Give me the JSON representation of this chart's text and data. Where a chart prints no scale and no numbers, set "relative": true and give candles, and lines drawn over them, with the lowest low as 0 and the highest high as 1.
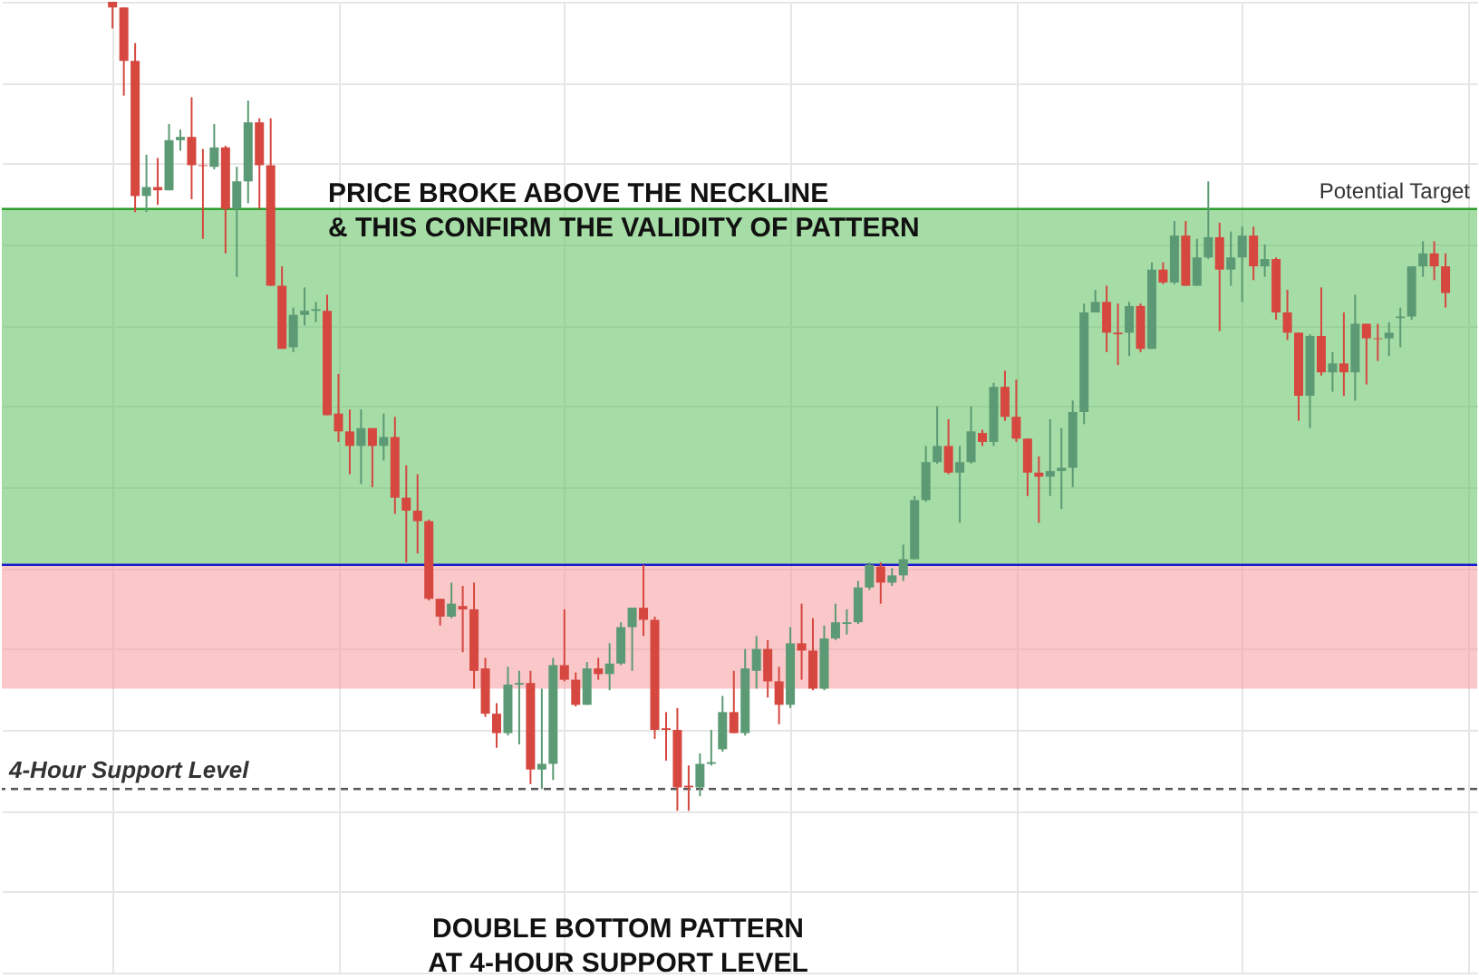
{
  "chart_data": {
    "type": "candlestick",
    "relative": true,
    "tick_labels": false,
    "grid": true,
    "colors": [
      "#d5473f",
      "#d5473f",
      "#d5473f",
      "#5b9a74",
      "#d5473f",
      "#5b9a74",
      "#5b9a74",
      "#d5473f",
      "#d5473f",
      "#5b9a74",
      "#d5473f",
      "#5b9a74",
      "#5b9a74",
      "#d5473f",
      "#d5473f",
      "#d5473f",
      "#5b9a74",
      "#5b9a74",
      "#5b9a74",
      "#d5473f",
      "#d5473f",
      "#d5473f",
      "#5b9a74",
      "#d5473f",
      "#5b9a74",
      "#d5473f",
      "#d5473f",
      "#d5473f",
      "#d5473f",
      "#d5473f",
      "#5b9a74",
      "#d5473f",
      "#d5473f",
      "#d5473f",
      "#d5473f",
      "#5b9a74",
      "#5b9a74",
      "#d5473f",
      "#5b9a74",
      "#5b9a74",
      "#d5473f",
      "#d5473f",
      "#5b9a74",
      "#d5473f",
      "#5b9a74",
      "#5b9a74",
      "#5b9a74",
      "#d5473f",
      "#d5473f",
      "#d5473f",
      "#d5473f",
      "#d5473f",
      "#5b9a74",
      "#5b9a74",
      "#5b9a74",
      "#d5473f",
      "#5b9a74",
      "#5b9a74",
      "#d5473f",
      "#d5473f",
      "#5b9a74",
      "#d5473f",
      "#d5473f",
      "#5b9a74",
      "#5b9a74",
      "#5b9a74",
      "#5b9a74",
      "#5b9a74",
      "#d5473f",
      "#5b9a74",
      "#5b9a74",
      "#5b9a74",
      "#5b9a74",
      "#5b9a74",
      "#d5473f",
      "#5b9a74",
      "#5b9a74",
      "#d5473f",
      "#5b9a74",
      "#d5473f",
      "#d5473f",
      "#d5473f",
      "#d5473f",
      "#5b9a74",
      "#5b9a74",
      "#5b9a74",
      "#5b9a74",
      "#5b9a74",
      "#d5473f",
      "#d5473f",
      "#5b9a74",
      "#d5473f",
      "#5b9a74",
      "#d5473f",
      "#5b9a74",
      "#d5473f",
      "#5b9a74",
      "#5b9a74",
      "#d5473f",
      "#5b9a74",
      "#5b9a74",
      "#d5473f",
      "#5b9a74",
      "#d5473f",
      "#d5473f",
      "#d5473f",
      "#5b9a74",
      "#d5473f",
      "#5b9a74",
      "#d5473f",
      "#5b9a74",
      "#d5473f",
      "#d5473f",
      "#5b9a74",
      "#5b9a74",
      "#5b9a74",
      "#5b9a74",
      "#d5473f",
      "#d5473f"
    ],
    "categories": [
      null,
      null,
      null,
      null,
      null,
      null,
      null,
      null,
      null,
      null,
      null,
      null,
      null,
      null,
      null,
      null,
      null,
      null,
      null,
      null,
      null,
      null,
      null,
      null,
      null,
      null,
      null,
      null,
      null,
      null,
      null,
      null,
      null,
      null,
      null,
      null,
      null,
      null,
      null,
      null,
      null,
      null,
      null,
      null,
      null,
      null,
      null,
      null,
      null,
      null,
      null,
      null,
      null,
      null,
      null,
      null,
      null,
      null,
      null,
      null,
      null,
      null,
      null,
      null,
      null,
      null,
      null,
      null,
      null,
      null,
      null,
      null,
      null,
      null,
      null,
      null,
      null,
      null,
      null,
      null,
      null,
      null,
      null,
      null,
      null,
      null,
      null,
      null,
      null,
      null,
      null,
      null,
      null,
      null,
      null,
      null,
      null,
      null,
      null,
      null,
      null,
      null,
      null,
      null,
      null,
      null,
      null,
      null,
      null,
      null,
      null,
      null,
      null,
      null,
      null,
      null,
      null,
      null,
      null
    ],
    "ohlc": [
      [
        1.0,
        1.0,
        0.967,
        0.993
      ],
      [
        0.993,
        0.993,
        0.884,
        0.927
      ],
      [
        0.927,
        0.949,
        0.74,
        0.76
      ],
      [
        0.76,
        0.811,
        0.74,
        0.771
      ],
      [
        0.771,
        0.807,
        0.749,
        0.767
      ],
      [
        0.767,
        0.849,
        0.767,
        0.829
      ],
      [
        0.829,
        0.842,
        0.816,
        0.833
      ],
      [
        0.833,
        0.882,
        0.756,
        0.798
      ],
      [
        0.798,
        0.818,
        0.707,
        0.797
      ],
      [
        0.796,
        0.849,
        0.793,
        0.82
      ],
      [
        0.82,
        0.822,
        0.689,
        0.744
      ],
      [
        0.744,
        0.796,
        0.66,
        0.778
      ],
      [
        0.778,
        0.878,
        0.751,
        0.851
      ],
      [
        0.851,
        0.856,
        0.744,
        0.798
      ],
      [
        0.798,
        0.856,
        0.649,
        0.649
      ],
      [
        0.649,
        0.673,
        0.571,
        0.571
      ],
      [
        0.573,
        0.622,
        0.567,
        0.613
      ],
      [
        0.613,
        0.647,
        0.6,
        0.618
      ],
      [
        0.618,
        0.629,
        0.604,
        0.62
      ],
      [
        0.618,
        0.638,
        0.489,
        0.489
      ],
      [
        0.491,
        0.54,
        0.456,
        0.469
      ],
      [
        0.469,
        0.496,
        0.416,
        0.451
      ],
      [
        0.451,
        0.496,
        0.404,
        0.473
      ],
      [
        0.473,
        0.473,
        0.4,
        0.451
      ],
      [
        0.451,
        0.491,
        0.433,
        0.462
      ],
      [
        0.462,
        0.487,
        0.367,
        0.387
      ],
      [
        0.387,
        0.427,
        0.307,
        0.371
      ],
      [
        0.371,
        0.416,
        0.318,
        0.358
      ],
      [
        0.358,
        0.36,
        0.26,
        0.262
      ],
      [
        0.262,
        0.262,
        0.229,
        0.24
      ],
      [
        0.24,
        0.282,
        0.238,
        0.256
      ],
      [
        0.253,
        0.278,
        0.196,
        0.249
      ],
      [
        0.249,
        0.282,
        0.151,
        0.173
      ],
      [
        0.176,
        0.189,
        0.116,
        0.12
      ],
      [
        0.12,
        0.133,
        0.078,
        0.096
      ],
      [
        0.096,
        0.178,
        0.093,
        0.156
      ],
      [
        0.156,
        0.173,
        0.082,
        0.158
      ],
      [
        0.158,
        0.173,
        0.033,
        0.051
      ],
      [
        0.051,
        0.151,
        0.027,
        0.058
      ],
      [
        0.058,
        0.189,
        0.038,
        0.18
      ],
      [
        0.18,
        0.249,
        0.16,
        0.162
      ],
      [
        0.162,
        0.171,
        0.129,
        0.131
      ],
      [
        0.131,
        0.184,
        0.131,
        0.176
      ],
      [
        0.176,
        0.189,
        0.162,
        0.169
      ],
      [
        0.169,
        0.207,
        0.149,
        0.182
      ],
      [
        0.182,
        0.233,
        0.18,
        0.227
      ],
      [
        0.227,
        0.251,
        0.173,
        0.251
      ],
      [
        0.251,
        0.304,
        0.216,
        0.236
      ],
      [
        0.236,
        0.24,
        0.089,
        0.1
      ],
      [
        0.102,
        0.122,
        0.062,
        0.1
      ],
      [
        0.1,
        0.127,
        0.0,
        0.029
      ],
      [
        0.031,
        0.056,
        0.0,
        0.029
      ],
      [
        0.029,
        0.071,
        0.018,
        0.058
      ],
      [
        0.058,
        0.1,
        0.056,
        0.06
      ],
      [
        0.076,
        0.142,
        0.073,
        0.122
      ],
      [
        0.122,
        0.173,
        0.096,
        0.096
      ],
      [
        0.096,
        0.2,
        0.093,
        0.176
      ],
      [
        0.173,
        0.216,
        0.151,
        0.2
      ],
      [
        0.2,
        0.211,
        0.14,
        0.16
      ],
      [
        0.16,
        0.178,
        0.107,
        0.131
      ],
      [
        0.131,
        0.227,
        0.127,
        0.207
      ],
      [
        0.207,
        0.256,
        0.162,
        0.198
      ],
      [
        0.198,
        0.238,
        0.149,
        0.151
      ],
      [
        0.151,
        0.229,
        0.149,
        0.213
      ],
      [
        0.213,
        0.256,
        0.211,
        0.233
      ],
      [
        0.231,
        0.249,
        0.218,
        0.233
      ],
      [
        0.233,
        0.284,
        0.231,
        0.276
      ],
      [
        0.276,
        0.307,
        0.273,
        0.304
      ],
      [
        0.302,
        0.307,
        0.256,
        0.282
      ],
      [
        0.282,
        0.3,
        0.278,
        0.291
      ],
      [
        0.291,
        0.329,
        0.284,
        0.311
      ],
      [
        0.311,
        0.389,
        0.311,
        0.384
      ],
      [
        0.384,
        0.451,
        0.382,
        0.431
      ],
      [
        0.431,
        0.5,
        0.429,
        0.451
      ],
      [
        0.451,
        0.484,
        0.416,
        0.418
      ],
      [
        0.418,
        0.451,
        0.356,
        0.431
      ],
      [
        0.431,
        0.5,
        0.429,
        0.469
      ],
      [
        0.467,
        0.471,
        0.451,
        0.456
      ],
      [
        0.456,
        0.529,
        0.451,
        0.524
      ],
      [
        0.524,
        0.544,
        0.482,
        0.487
      ],
      [
        0.487,
        0.533,
        0.456,
        0.46
      ],
      [
        0.46,
        0.46,
        0.389,
        0.418
      ],
      [
        0.418,
        0.438,
        0.356,
        0.413
      ],
      [
        0.413,
        0.484,
        0.389,
        0.42
      ],
      [
        0.42,
        0.473,
        0.373,
        0.424
      ],
      [
        0.424,
        0.507,
        0.4,
        0.493
      ],
      [
        0.493,
        0.627,
        0.478,
        0.616
      ],
      [
        0.616,
        0.644,
        0.616,
        0.629
      ],
      [
        0.629,
        0.649,
        0.567,
        0.591
      ],
      [
        0.591,
        0.627,
        0.551,
        0.589
      ],
      [
        0.591,
        0.629,
        0.562,
        0.624
      ],
      [
        0.624,
        0.627,
        0.567,
        0.571
      ],
      [
        0.571,
        0.678,
        0.571,
        0.669
      ],
      [
        0.669,
        0.678,
        0.651,
        0.653
      ],
      [
        0.653,
        0.729,
        0.651,
        0.711
      ],
      [
        0.711,
        0.729,
        0.649,
        0.649
      ],
      [
        0.649,
        0.707,
        0.649,
        0.684
      ],
      [
        0.684,
        0.778,
        0.682,
        0.709
      ],
      [
        0.709,
        0.727,
        0.593,
        0.669
      ],
      [
        0.669,
        0.716,
        0.649,
        0.684
      ],
      [
        0.684,
        0.722,
        0.629,
        0.711
      ],
      [
        0.711,
        0.722,
        0.656,
        0.673
      ],
      [
        0.673,
        0.7,
        0.66,
        0.682
      ],
      [
        0.682,
        0.684,
        0.607,
        0.616
      ],
      [
        0.616,
        0.644,
        0.582,
        0.591
      ],
      [
        0.591,
        0.591,
        0.482,
        0.513
      ],
      [
        0.513,
        0.589,
        0.473,
        0.587
      ],
      [
        0.587,
        0.647,
        0.538,
        0.542
      ],
      [
        0.542,
        0.567,
        0.518,
        0.553
      ],
      [
        0.553,
        0.616,
        0.513,
        0.542
      ],
      [
        0.542,
        0.638,
        0.507,
        0.602
      ],
      [
        0.602,
        0.602,
        0.527,
        0.584
      ],
      [
        0.584,
        0.602,
        0.556,
        0.583
      ],
      [
        0.584,
        0.604,
        0.562,
        0.591
      ],
      [
        0.609,
        0.622,
        0.573,
        0.611
      ],
      [
        0.611,
        0.673,
        0.607,
        0.673
      ],
      [
        0.673,
        0.704,
        0.66,
        0.689
      ],
      [
        0.689,
        0.704,
        0.656,
        0.673
      ],
      [
        0.673,
        0.689,
        0.622,
        0.64
      ]
    ],
    "ref_lines": [
      {
        "axis": "y",
        "value": 0.744,
        "label": "Potential Target",
        "color": "#2e9e2e",
        "line_style": "solid"
      },
      {
        "axis": "y",
        "value": 0.304,
        "label": null,
        "color": "#1a1acc",
        "line_style": "solid"
      },
      {
        "axis": "y",
        "value": 0.027,
        "label": "4-Hour Support Level",
        "color": "#555555",
        "line_style": "dashed"
      }
    ],
    "bands": [
      {
        "axis": "y",
        "from": 0.304,
        "to": 0.744,
        "color": "#5cc05c"
      },
      {
        "axis": "y",
        "from": 0.151,
        "to": 0.304,
        "color": "#f59a9a"
      }
    ],
    "annotations": [
      "PRICE BROKE ABOVE THE NECKLINE\n& THIS CONFIRM THE VALIDITY OF PATTERN",
      "DOUBLE BOTTOM PATTERN\nAT 4-HOUR SUPPORT LEVEL"
    ]
  }
}
